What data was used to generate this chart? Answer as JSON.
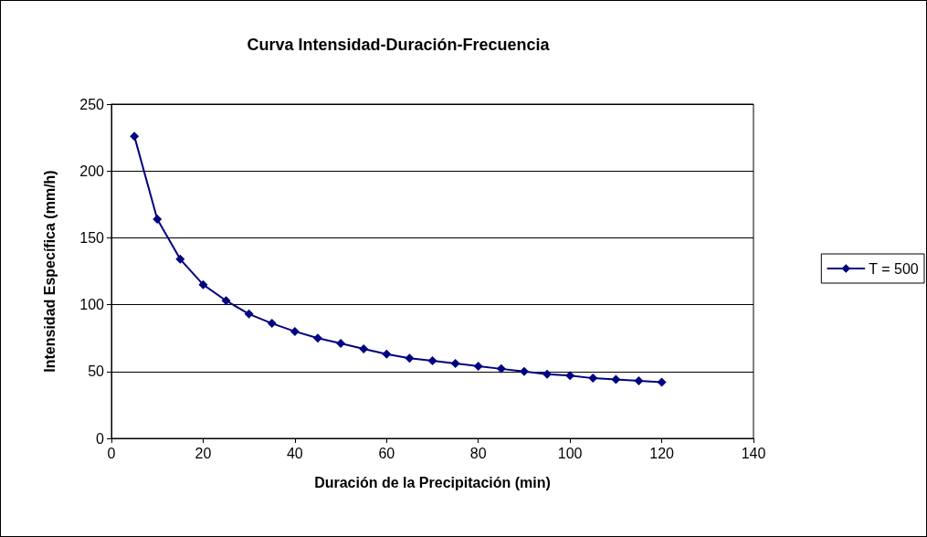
{
  "chart_data": {
    "type": "line",
    "title": "Curva Intensidad-Duración-Frecuencia",
    "xlabel": "Duración de la Precipitación (min)",
    "ylabel": "Intensidad Específica (mm/h)",
    "x": [
      5,
      10,
      15,
      20,
      25,
      30,
      35,
      40,
      45,
      50,
      55,
      60,
      65,
      70,
      75,
      80,
      85,
      90,
      95,
      100,
      105,
      110,
      115,
      120
    ],
    "series": [
      {
        "name": "T = 500",
        "color": "#000080",
        "values": [
          226,
          164,
          134,
          115,
          103,
          93,
          86,
          80,
          75,
          71,
          67,
          63,
          60,
          58,
          56,
          54,
          52,
          50,
          48,
          47,
          45,
          44,
          43,
          42
        ]
      }
    ],
    "xlim": [
      0,
      140
    ],
    "xticks": [
      0,
      20,
      40,
      60,
      80,
      100,
      120,
      140
    ],
    "ylim": [
      0,
      250
    ],
    "yticks": [
      0,
      50,
      100,
      150,
      200,
      250
    ],
    "grid": "y",
    "legend": "right",
    "marker": "diamond",
    "line_style": "solid"
  }
}
